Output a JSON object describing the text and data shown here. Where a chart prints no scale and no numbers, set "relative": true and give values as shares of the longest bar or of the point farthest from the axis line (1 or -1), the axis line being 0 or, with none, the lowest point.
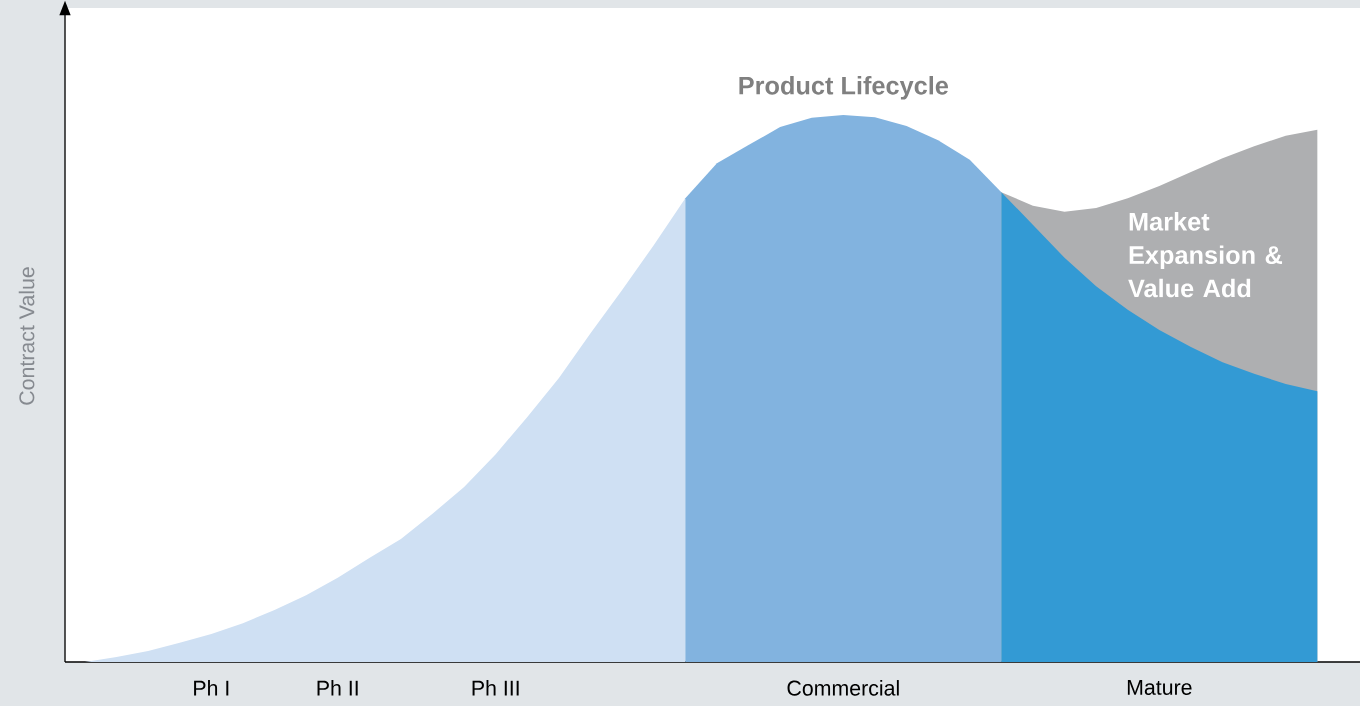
{
  "chart_data": {
    "type": "area",
    "relative": true,
    "ylabel": "Contract Value",
    "categories": [
      null,
      null,
      null,
      null,
      "Ph I",
      null,
      null,
      null,
      "Ph II",
      null,
      null,
      null,
      null,
      "Ph III",
      null,
      null,
      null,
      null,
      null,
      null,
      null,
      null,
      null,
      null,
      "Commercial",
      null,
      null,
      null,
      null,
      null,
      null,
      null,
      null,
      null,
      "Mature",
      null,
      null,
      null,
      null,
      null
    ],
    "annotations": [
      "Product Lifecycle"
    ],
    "series": [
      {
        "color": "#cfe0f3",
        "values": [
          0,
          0.009,
          0.02,
          0.035,
          0.051,
          0.071,
          0.095,
          0.122,
          0.154,
          0.19,
          0.225,
          0.271,
          0.32,
          0.38,
          0.448,
          0.519,
          0.601,
          0.68,
          0.762,
          0.848,
          null,
          null,
          null,
          null,
          null,
          null,
          null,
          null,
          null,
          null,
          null,
          null,
          null,
          null,
          null,
          null,
          null,
          null,
          null,
          null
        ]
      },
      {
        "color": "#82b3df",
        "values": [
          null,
          null,
          null,
          null,
          null,
          null,
          null,
          null,
          null,
          null,
          null,
          null,
          null,
          null,
          null,
          null,
          null,
          null,
          null,
          0.848,
          0.912,
          0.945,
          0.978,
          0.995,
          1.0,
          0.996,
          0.98,
          0.954,
          0.918,
          0.859,
          null,
          null,
          null,
          null,
          null,
          null,
          null,
          null,
          null,
          null
        ]
      },
      {
        "name": "Market Expansion & Value Add",
        "color": "#aeafb1",
        "values": [
          null,
          null,
          null,
          null,
          null,
          null,
          null,
          null,
          null,
          null,
          null,
          null,
          null,
          null,
          null,
          null,
          null,
          null,
          null,
          null,
          null,
          null,
          null,
          null,
          null,
          null,
          null,
          null,
          null,
          0.859,
          0.834,
          0.823,
          0.83,
          0.848,
          0.87,
          0.896,
          0.921,
          0.943,
          0.962,
          0.973
        ]
      },
      {
        "color": "#339ad4",
        "values": [
          null,
          null,
          null,
          null,
          null,
          null,
          null,
          null,
          null,
          null,
          null,
          null,
          null,
          null,
          null,
          null,
          null,
          null,
          null,
          null,
          null,
          null,
          null,
          null,
          null,
          null,
          null,
          null,
          null,
          0.859,
          0.799,
          0.739,
          0.687,
          0.644,
          0.607,
          0.576,
          0.548,
          0.527,
          0.508,
          0.495
        ]
      }
    ]
  }
}
